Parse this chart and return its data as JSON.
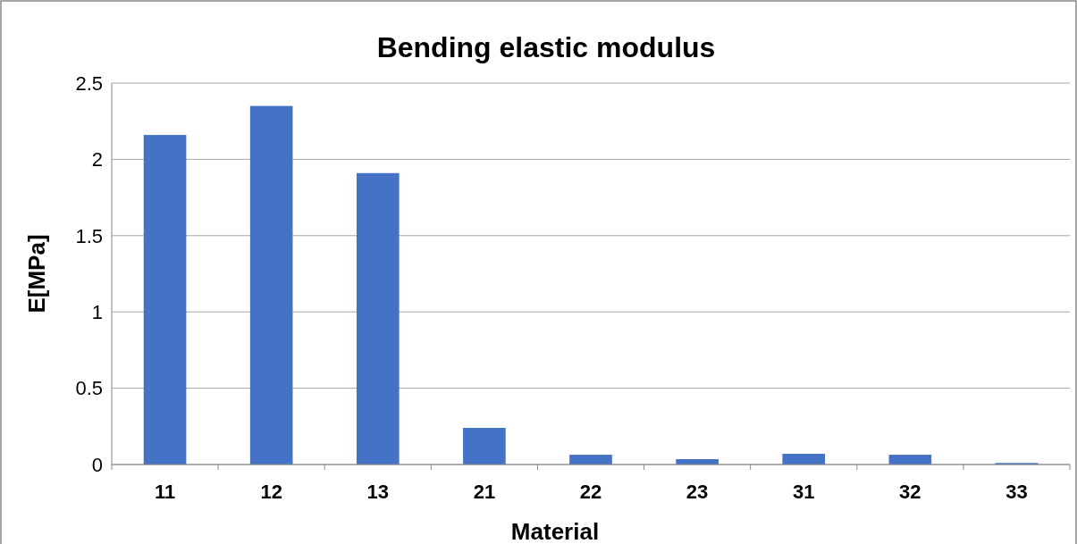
{
  "chart_data": {
    "type": "bar",
    "title": "Bending elastic modulus",
    "xlabel": "Material",
    "ylabel": "E[MPa]",
    "categories": [
      "11",
      "12",
      "13",
      "21",
      "22",
      "23",
      "31",
      "32",
      "33"
    ],
    "values": [
      2.16,
      2.35,
      1.91,
      0.24,
      0.064,
      0.035,
      0.07,
      0.064,
      0.01
    ],
    "color": "#4472c4",
    "ylim": [
      0,
      2.5
    ],
    "yticks": [
      {
        "value": 0,
        "label": "0"
      },
      {
        "value": 0.5,
        "label": "0.5"
      },
      {
        "value": 1,
        "label": "1"
      },
      {
        "value": 1.5,
        "label": "1.5"
      },
      {
        "value": 2,
        "label": "2"
      },
      {
        "value": 2.5,
        "label": "2.5"
      }
    ],
    "grid": "y"
  }
}
